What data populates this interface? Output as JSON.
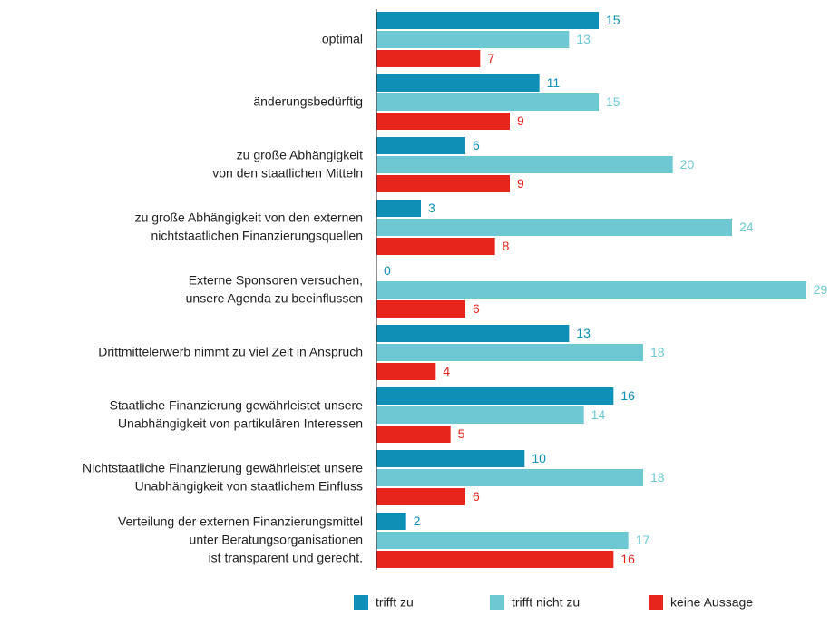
{
  "chart_data": {
    "type": "bar",
    "orientation": "horizontal",
    "categories": [
      [
        "optimal"
      ],
      [
        "änderungsbedürftig"
      ],
      [
        "zu große Abhängigkeit",
        "von den staatlichen Mitteln"
      ],
      [
        "zu große Abhängigkeit von den externen",
        "nichtstaatlichen Finanzierungsquellen"
      ],
      [
        "Externe Sponsoren versuchen,",
        "unsere Agenda zu beeinflussen"
      ],
      [
        "Drittmittelerwerb nimmt zu viel Zeit in Anspruch"
      ],
      [
        "Staatliche Finanzierung gewährleistet unsere",
        "Unabhängigkeit von partikulären Interessen"
      ],
      [
        "Nichtstaatliche Finanzierung gewährleistet unsere",
        "Unabhängigkeit von staatlichem Einfluss"
      ],
      [
        "Verteilung der externen Finanzierungsmittel",
        "unter Beratungsorganisationen",
        "ist transparent und gerecht."
      ]
    ],
    "series": [
      {
        "name": "trifft zu",
        "color": "#0e8fb5",
        "values": [
          15,
          11,
          6,
          3,
          0,
          13,
          16,
          10,
          2
        ]
      },
      {
        "name": "trifft nicht zu",
        "color": "#6ec8d4",
        "values": [
          13,
          15,
          20,
          24,
          29,
          18,
          14,
          18,
          17
        ]
      },
      {
        "name": "keine Aussage",
        "color": "#e8251d",
        "values": [
          7,
          9,
          9,
          8,
          6,
          4,
          5,
          6,
          16
        ]
      }
    ],
    "xlim": [
      0,
      30
    ],
    "legend": "bottom"
  }
}
